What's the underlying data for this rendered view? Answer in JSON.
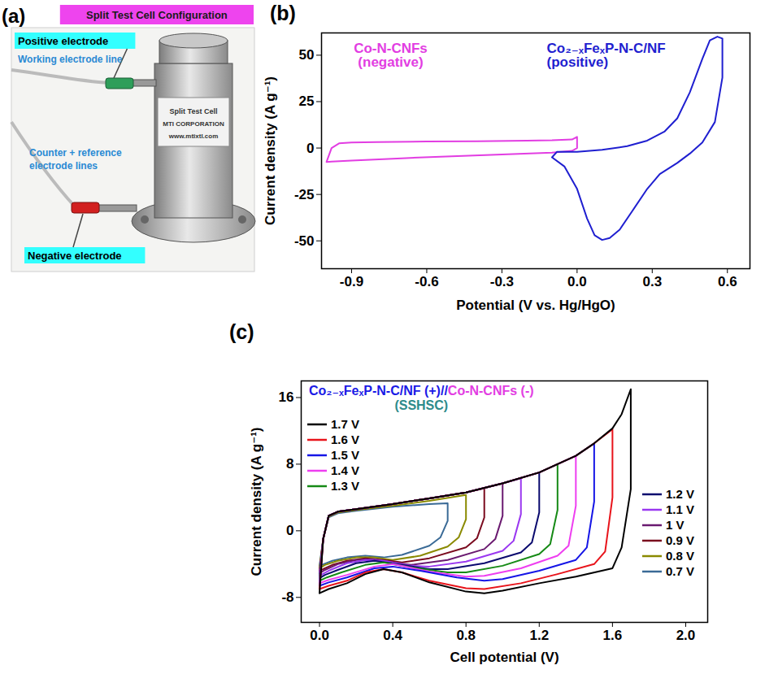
{
  "panel_a": {
    "label": "(a)",
    "title": "Split Test Cell Configuration",
    "positive_electrode": "Positive electrode",
    "working_electrode_line": "Working electrode line",
    "counter_reference_lines": "Counter + reference electrode lines",
    "negative_electrode": "Negative electrode",
    "device_texts": [
      "Split Test Cell",
      "MTI CORPORATION",
      "www.mtixtl.com"
    ]
  },
  "chart_data": [
    {
      "panel": "(b)",
      "type": "line",
      "x_label": "Potential (V vs. Hg/HgO)",
      "y_label": "Current density (A g⁻¹)",
      "xlim": [
        -1.02,
        0.69
      ],
      "xticks": [
        -0.9,
        -0.6,
        -0.3,
        {
          "value": 0,
          "label": "0.0"
        },
        0.3,
        0.6
      ],
      "ylim": [
        -65,
        62
      ],
      "yticks": [
        -50,
        -25,
        0,
        25,
        50
      ],
      "series": [
        {
          "name": "Co-N-CNFs",
          "label": "(negative)",
          "color": "#e23de2",
          "x": [
            -1.0,
            -0.98,
            -0.95,
            -0.9,
            -0.8,
            -0.6,
            -0.4,
            -0.2,
            -0.1,
            -0.02,
            0.0,
            0.0,
            -0.02,
            -0.1,
            -0.3,
            -0.5,
            -0.7,
            -0.9,
            -0.98,
            -1.0
          ],
          "values": [
            -7.5,
            0,
            2.5,
            3,
            3.2,
            3.5,
            3.7,
            4,
            4.2,
            4.6,
            6,
            0,
            -1.5,
            -2.5,
            -3.5,
            -4.5,
            -5.5,
            -6.8,
            -7.3,
            -7.5
          ]
        },
        {
          "name": "Co₂₋ₓFeₓP-N-C/NF",
          "label": "(positive)",
          "color": "#1f1fd0",
          "x": [
            -0.1,
            -0.08,
            0.0,
            0.1,
            0.2,
            0.28,
            0.35,
            0.4,
            0.45,
            0.5,
            0.53,
            0.56,
            0.58,
            0.58,
            0.55,
            0.5,
            0.45,
            0.4,
            0.33,
            0.28,
            0.22,
            0.17,
            0.13,
            0.1,
            0.07,
            0.04,
            0.0,
            -0.05,
            -0.1
          ],
          "values": [
            -5,
            -2,
            -2,
            -1,
            1,
            4,
            9,
            16,
            30,
            48,
            58,
            60,
            59,
            38,
            14,
            3,
            -3,
            -8,
            -14,
            -22,
            -34,
            -44,
            -48.5,
            -49.5,
            -47,
            -38,
            -22,
            -10,
            -5
          ]
        }
      ]
    },
    {
      "panel": "(c)",
      "type": "line",
      "title": "Co₂₋ₓFeₓP-N-C/NF (+)//Co-N-CNFs (-)",
      "subtitle": "(SSHSC)",
      "x_label": "Cell potential (V)",
      "y_label": "Current density (A g⁻¹)",
      "xlim": [
        -0.1,
        2.12
      ],
      "xticks": [
        {
          "value": 0,
          "label": "0.0"
        },
        0.4,
        0.8,
        1.2,
        1.6,
        {
          "value": 2,
          "label": "2.0"
        }
      ],
      "ylim": [
        -11,
        18
      ],
      "yticks": [
        -8,
        0,
        8,
        16
      ],
      "legend": "inside",
      "series": [
        {
          "name": "1.7 V",
          "color": "#000000",
          "x": [
            0,
            0.02,
            0.05,
            0.1,
            0.2,
            0.4,
            0.6,
            0.8,
            1.0,
            1.2,
            1.4,
            1.5,
            1.6,
            1.65,
            1.7,
            1.7,
            1.65,
            1.6,
            1.4,
            1.2,
            1.0,
            0.9,
            0.8,
            0.6,
            0.45,
            0.35,
            0.25,
            0.15,
            0.05,
            0
          ],
          "values": [
            -7.5,
            -1,
            1.8,
            2.3,
            2.6,
            3.2,
            3.9,
            4.6,
            5.7,
            7.0,
            9.0,
            10.5,
            12.3,
            14,
            17,
            5,
            -2,
            -4.5,
            -5.5,
            -6.3,
            -7.2,
            -7.5,
            -7.3,
            -6.2,
            -5,
            -4.6,
            -5.2,
            -6.3,
            -7,
            -7.5
          ]
        },
        {
          "name": "1.6 V",
          "color": "#e8141b",
          "x": [
            0,
            0.02,
            0.05,
            0.1,
            0.2,
            0.4,
            0.6,
            0.8,
            1.0,
            1.2,
            1.4,
            1.5,
            1.6,
            1.6,
            1.56,
            1.5,
            1.3,
            1.1,
            0.9,
            0.8,
            0.6,
            0.45,
            0.35,
            0.25,
            0.15,
            0.05,
            0
          ],
          "values": [
            -7,
            -1,
            1.8,
            2.3,
            2.6,
            3.2,
            3.9,
            4.6,
            5.7,
            7.0,
            9.0,
            10.5,
            12.2,
            4,
            -2.5,
            -4,
            -5.2,
            -6.3,
            -7,
            -6.9,
            -6,
            -5,
            -4.6,
            -5,
            -6,
            -6.6,
            -7
          ]
        },
        {
          "name": "1.5 V",
          "color": "#1515e6",
          "x": [
            0,
            0.02,
            0.05,
            0.1,
            0.2,
            0.4,
            0.6,
            0.8,
            1.0,
            1.2,
            1.4,
            1.5,
            1.5,
            1.46,
            1.4,
            1.2,
            1.0,
            0.9,
            0.75,
            0.55,
            0.4,
            0.3,
            0.15,
            0.05,
            0
          ],
          "values": [
            -6.6,
            -1,
            1.8,
            2.3,
            2.6,
            3.2,
            3.9,
            4.6,
            5.7,
            7.0,
            9.0,
            10.5,
            3.5,
            -2,
            -3.5,
            -4.8,
            -5.8,
            -6,
            -5.6,
            -4.8,
            -4.3,
            -4.5,
            -5.6,
            -6.2,
            -6.6
          ]
        },
        {
          "name": "1.4 V",
          "color": "#ee3ef0",
          "x": [
            0,
            0.02,
            0.05,
            0.1,
            0.2,
            0.4,
            0.6,
            0.8,
            1.0,
            1.2,
            1.4,
            1.4,
            1.36,
            1.3,
            1.1,
            0.9,
            0.8,
            0.6,
            0.4,
            0.3,
            0.15,
            0.05,
            0
          ],
          "values": [
            -6.3,
            -1,
            1.8,
            2.3,
            2.6,
            3.2,
            3.9,
            4.6,
            5.7,
            7.0,
            9.0,
            3,
            -1.8,
            -3,
            -4.5,
            -5.4,
            -5.5,
            -4.9,
            -4,
            -4.3,
            -5.3,
            -5.9,
            -6.3
          ]
        },
        {
          "name": "1.3 V",
          "color": "#168a16",
          "x": [
            0,
            0.02,
            0.05,
            0.1,
            0.2,
            0.4,
            0.6,
            0.8,
            1.0,
            1.2,
            1.3,
            1.3,
            1.26,
            1.2,
            1.0,
            0.8,
            0.7,
            0.5,
            0.35,
            0.25,
            0.12,
            0.04,
            0
          ],
          "values": [
            -6,
            -1,
            1.8,
            2.3,
            2.6,
            3.2,
            3.9,
            4.6,
            5.7,
            7.0,
            8.0,
            2.5,
            -1.6,
            -2.8,
            -4.2,
            -5,
            -5,
            -4.4,
            -3.8,
            -4.1,
            -5,
            -5.6,
            -6
          ]
        },
        {
          "name": "1.2 V",
          "color": "#0a0a6e",
          "x": [
            0,
            0.02,
            0.05,
            0.1,
            0.2,
            0.4,
            0.6,
            0.8,
            1.0,
            1.2,
            1.2,
            1.16,
            1.1,
            0.9,
            0.7,
            0.6,
            0.45,
            0.3,
            0.2,
            0.1,
            0.03,
            0
          ],
          "values": [
            -5.7,
            -1,
            1.8,
            2.3,
            2.6,
            3.2,
            3.9,
            4.6,
            5.7,
            7.0,
            2.2,
            -1.4,
            -2.6,
            -3.9,
            -4.6,
            -4.6,
            -4.1,
            -3.6,
            -3.9,
            -4.7,
            -5.3,
            -5.7
          ]
        },
        {
          "name": "1.1 V",
          "color": "#9a38f0",
          "x": [
            0,
            0.02,
            0.05,
            0.1,
            0.2,
            0.4,
            0.6,
            0.8,
            1.0,
            1.1,
            1.1,
            1.06,
            1.0,
            0.8,
            0.6,
            0.5,
            0.35,
            0.25,
            0.15,
            0.06,
            0
          ],
          "values": [
            -5.4,
            -1,
            1.8,
            2.3,
            2.6,
            3.2,
            3.9,
            4.6,
            5.7,
            6.3,
            2,
            -1.2,
            -2.4,
            -3.7,
            -4.3,
            -4.2,
            -3.6,
            -3.5,
            -3.9,
            -4.7,
            -5.4
          ]
        },
        {
          "name": "1 V",
          "color": "#6a1a70",
          "x": [
            0,
            0.02,
            0.05,
            0.1,
            0.2,
            0.4,
            0.6,
            0.8,
            1.0,
            1.0,
            0.96,
            0.9,
            0.7,
            0.5,
            0.4,
            0.3,
            0.2,
            0.1,
            0.03,
            0
          ],
          "values": [
            -5.1,
            -1,
            1.8,
            2.3,
            2.6,
            3.2,
            3.9,
            4.6,
            5.7,
            1.8,
            -1,
            -2.2,
            -3.5,
            -4.1,
            -3.8,
            -3.4,
            -3.5,
            -4,
            -4.7,
            -5.1
          ]
        },
        {
          "name": "0.9 V",
          "color": "#7a0a1e",
          "x": [
            0,
            0.02,
            0.05,
            0.1,
            0.2,
            0.4,
            0.6,
            0.8,
            0.9,
            0.9,
            0.86,
            0.8,
            0.6,
            0.45,
            0.35,
            0.25,
            0.15,
            0.07,
            0
          ],
          "values": [
            -4.8,
            -1,
            1.8,
            2.3,
            2.6,
            3.2,
            3.9,
            4.6,
            5.1,
            1.6,
            -0.9,
            -2,
            -3.3,
            -3.8,
            -3.5,
            -3.3,
            -3.6,
            -4.1,
            -4.8
          ]
        },
        {
          "name": "0.8 V",
          "color": "#8a8a00",
          "x": [
            0,
            0.02,
            0.05,
            0.1,
            0.2,
            0.4,
            0.6,
            0.8,
            0.8,
            0.76,
            0.7,
            0.55,
            0.4,
            0.3,
            0.2,
            0.1,
            0.03,
            0
          ],
          "values": [
            -4.5,
            -1,
            1.7,
            2.2,
            2.5,
            3.0,
            3.6,
            4.3,
            1.4,
            -0.8,
            -1.9,
            -3,
            -3.5,
            -3.2,
            -3.2,
            -3.6,
            -4.1,
            -4.5
          ]
        },
        {
          "name": "0.7 V",
          "color": "#3a6a96",
          "x": [
            0,
            0.02,
            0.05,
            0.1,
            0.2,
            0.4,
            0.6,
            0.7,
            0.7,
            0.66,
            0.6,
            0.45,
            0.35,
            0.25,
            0.15,
            0.07,
            0
          ],
          "values": [
            -4.2,
            -1,
            1.6,
            2.1,
            2.4,
            2.9,
            3.2,
            3.3,
            1.2,
            -0.8,
            -1.8,
            -2.9,
            -3.2,
            -3,
            -3.2,
            -3.6,
            -4.2
          ]
        }
      ]
    }
  ]
}
